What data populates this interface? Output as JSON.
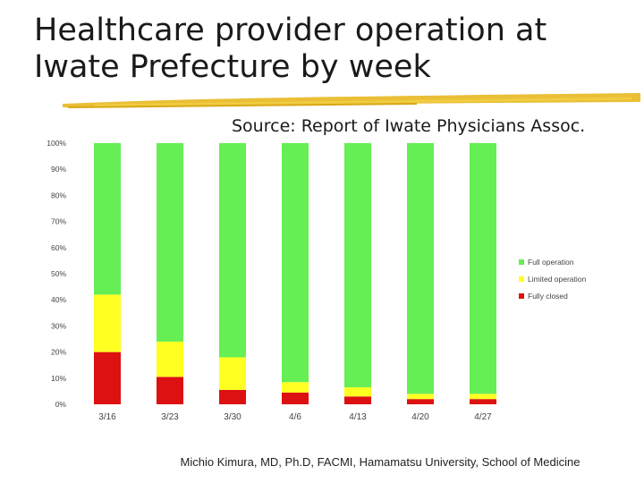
{
  "slide": {
    "title_line1": "Healthcare provider operation at",
    "title_line2": "Iwate Prefecture by week",
    "source": "Source: Report of Iwate Physicians Assoc.",
    "footer": "Michio Kimura, MD, Ph.D, FACMI, Hamamatsu University, School of Medicine"
  },
  "colors": {
    "full": "#66ee55",
    "limited": "#ffff22",
    "closed": "#dd1111",
    "underline": "#e8b820"
  },
  "chart_data": {
    "type": "bar",
    "stacked": true,
    "percent": true,
    "categories": [
      "3/16",
      "3/23",
      "3/30",
      "4/6",
      "4/13",
      "4/20",
      "4/27"
    ],
    "series": [
      {
        "name": "Fully closed",
        "values": [
          20,
          10.5,
          5.5,
          4.5,
          3,
          2,
          2
        ]
      },
      {
        "name": "Limited operation",
        "values": [
          22,
          13.5,
          12.5,
          4,
          3.5,
          2,
          2
        ]
      },
      {
        "name": "Full operation",
        "values": [
          58,
          76,
          82,
          91.5,
          93.5,
          96,
          96
        ]
      }
    ],
    "y_ticks": [
      "0%",
      "10%",
      "20%",
      "30%",
      "40%",
      "50%",
      "60%",
      "70%",
      "80%",
      "90%",
      "100%"
    ],
    "ylim": [
      0,
      100
    ],
    "legend_order": [
      "Full operation",
      "Limited operation",
      "Fully closed"
    ],
    "legend_position": "right",
    "grid": false
  }
}
